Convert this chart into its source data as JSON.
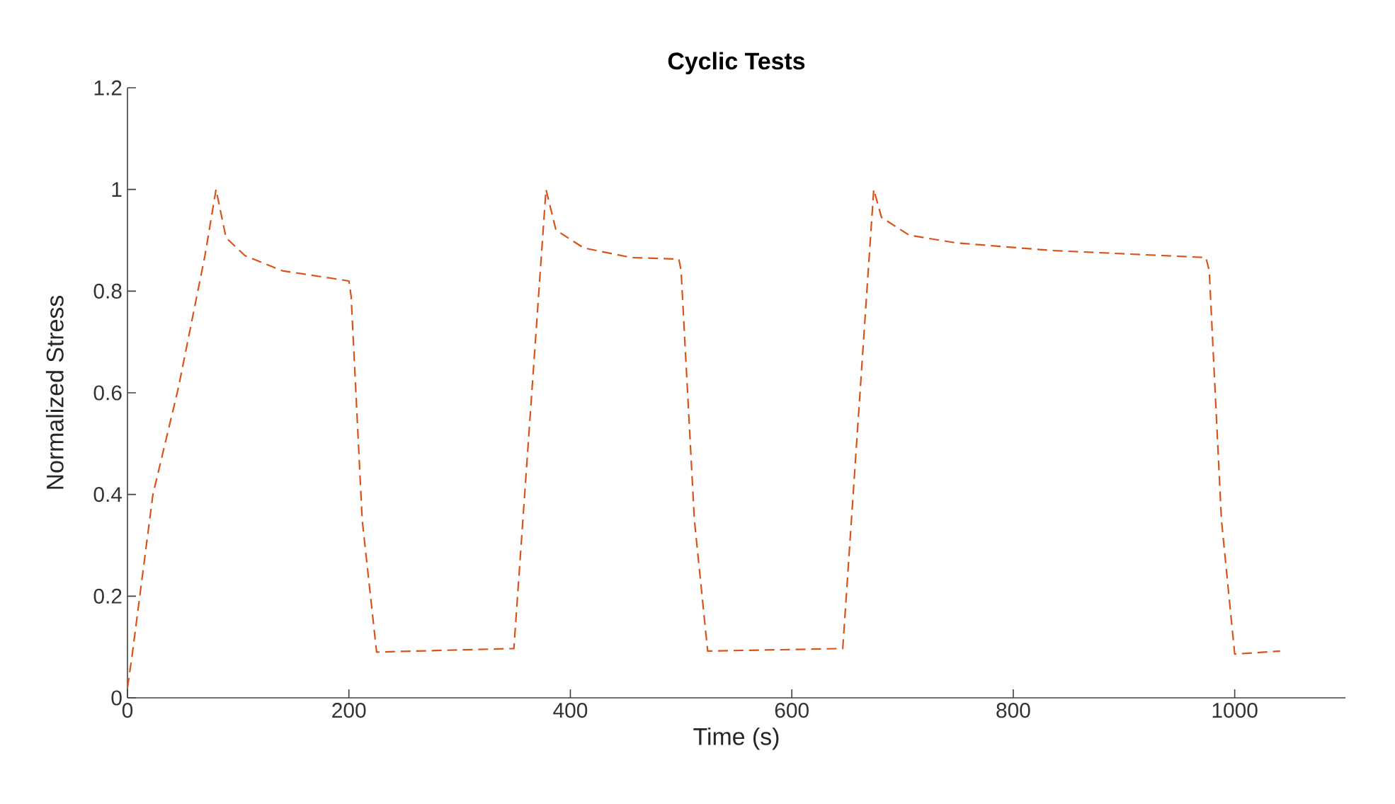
{
  "chart_data": {
    "type": "line",
    "title": "Cyclic Tests",
    "xlabel": "Time (s)",
    "ylabel": "Normalized Stress",
    "xlim": [
      0,
      1100
    ],
    "xticks": [
      0,
      200,
      400,
      600,
      800,
      1000
    ],
    "ylim": [
      0,
      1.2
    ],
    "yticks": [
      0,
      0.2,
      0.4,
      0.6,
      0.8,
      1,
      1.2
    ],
    "line_style": "dashed",
    "series": [
      {
        "color": "#d95319",
        "x": [
          0,
          4,
          23,
          46,
          70,
          80,
          89,
          106,
          140,
          200,
          202,
          212,
          225,
          349,
          378,
          387,
          412,
          455,
          498,
          500,
          512,
          524,
          646,
          674,
          681,
          706,
          748,
          834,
          974,
          977,
          988,
          1000,
          1041
        ],
        "values": [
          0.02,
          0.08,
          0.4,
          0.61,
          0.87,
          1.0,
          0.905,
          0.87,
          0.84,
          0.82,
          0.79,
          0.35,
          0.09,
          0.097,
          1.0,
          0.92,
          0.885,
          0.866,
          0.863,
          0.84,
          0.35,
          0.092,
          0.097,
          1.0,
          0.945,
          0.91,
          0.895,
          0.88,
          0.866,
          0.84,
          0.35,
          0.086,
          0.092
        ]
      }
    ]
  }
}
